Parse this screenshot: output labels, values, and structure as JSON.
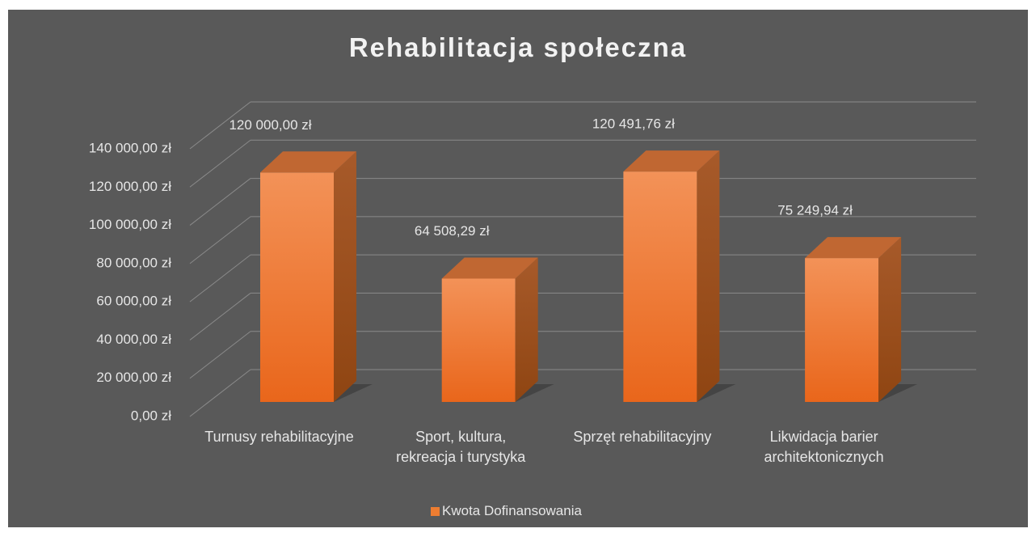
{
  "chart_data": {
    "type": "bar3d",
    "title": "Rehabilitacja społeczna",
    "categories": [
      "Turnusy rehabilitacyjne",
      "Sport, kultura, rekreacja i turystyka",
      "Sprzęt rehabilitacyjny",
      "Likwidacja barier architektonicznych"
    ],
    "series": [
      {
        "name": "Kwota Dofinansowania",
        "color": "#ed7d31",
        "values": [
          120000,
          64508.29,
          120491.76,
          75249.94
        ],
        "value_labels": [
          "120 000,00 zł",
          "64 508,29 zł",
          "120 491,76 zł",
          "75 249,94 zł"
        ]
      }
    ],
    "ylim": [
      0,
      140000
    ],
    "yticks": [
      {
        "value": 0,
        "label": "0,00 zł"
      },
      {
        "value": 20000,
        "label": "20 000,00 zł"
      },
      {
        "value": 40000,
        "label": "40 000,00 zł"
      },
      {
        "value": 60000,
        "label": "60 000,00 zł"
      },
      {
        "value": 80000,
        "label": "80 000,00 zł"
      },
      {
        "value": 100000,
        "label": "100 000,00 zł"
      },
      {
        "value": 120000,
        "label": "120 000,00 zł"
      },
      {
        "value": 140000,
        "label": "140 000,00 zł"
      }
    ],
    "grid": true,
    "legend": "bottom"
  }
}
